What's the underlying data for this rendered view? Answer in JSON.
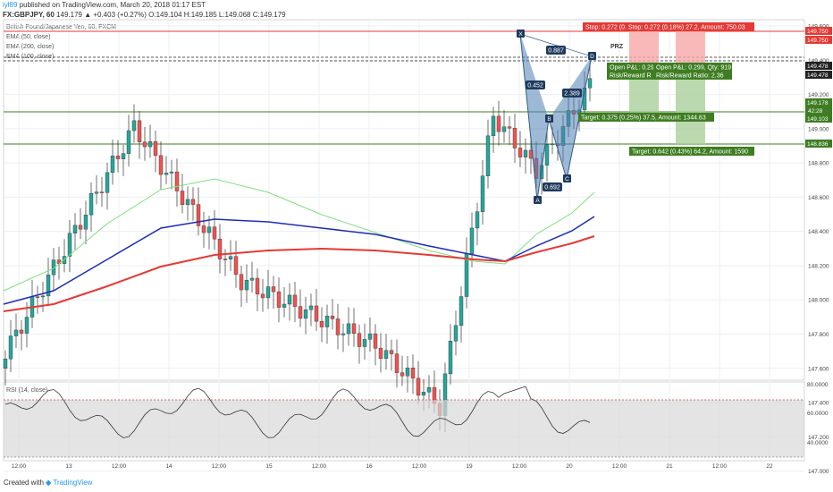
{
  "header": {
    "user": "iyl89",
    "published": "published on TradingView.com, March 20, 2018 01:17 EST",
    "symbol": "FX:GBPJPY, 60",
    "ohlc": "149.179 ▲ +0.403 (+0.27%) O:149.104 H:149.185 L:149.068 C:149.179"
  },
  "indicators": [
    "British Pound/Japanese Yen, 60, FXCM",
    "EMA (50, close)",
    "EMA (200, close)",
    "EMA (100, close)"
  ],
  "rsi_label": "RSI (14, close)",
  "footer": {
    "created": "Created with",
    "brand": "TradingView"
  },
  "colors": {
    "up": "#26a69a",
    "down": "#ef5350",
    "ema50": "#7ee07e",
    "ema100": "#1f2db6",
    "ema200": "#e53935",
    "pattern": "#4f7fb5",
    "target": "#3e7d22",
    "stop": "#e53935"
  },
  "annotations": {
    "stop_box": "Stop: 0.272 (0.  Stop: 0.272 (0.18%) 27.2, Amount: 750.03",
    "pnl1": "Open P&L: 0.29",
    "pnl2": "Open P&L: 0.299, Qty: 919",
    "rr1": "Risk/Reward R",
    "rr2": "Risk/Reward Ratio: 2.36",
    "target1": "Target: 0.375 (0.25%) 37.5, Amount: 1344.63",
    "target2": "Target: 0.642 (0.43%) 64.2, Amount: 1590",
    "prz": "PRZ"
  },
  "chart_data": {
    "type": "candlestick",
    "symbol": "FX:GBPJPY",
    "y_ticks": [
      "149.600",
      "149.400",
      "149.200",
      "149.000",
      "148.800",
      "148.600",
      "148.400",
      "148.200",
      "148.000",
      "147.800",
      "147.600",
      "147.400",
      "147.200",
      "147.000"
    ],
    "x_ticks": [
      "12:00",
      "13",
      "12:00",
      "14",
      "12:00",
      "15",
      "12:00",
      "16",
      "12:00",
      "19",
      "12:00",
      "20",
      "12:00",
      "21",
      "12:00",
      "22"
    ],
    "price_labels": [
      "149.750",
      "149.750",
      "149.478",
      "149.478",
      "149.178",
      "149.103",
      "148.836"
    ],
    "countdown": "42:28",
    "pattern_points": [
      "X",
      "A",
      "B",
      "C",
      "D"
    ],
    "pattern_ratios": [
      "0.887",
      "0.452",
      "2.389",
      "0.692"
    ],
    "rsi_ticks": [
      "80.0000",
      "60.0000",
      "40.0000"
    ],
    "close_price": 149.179
  }
}
